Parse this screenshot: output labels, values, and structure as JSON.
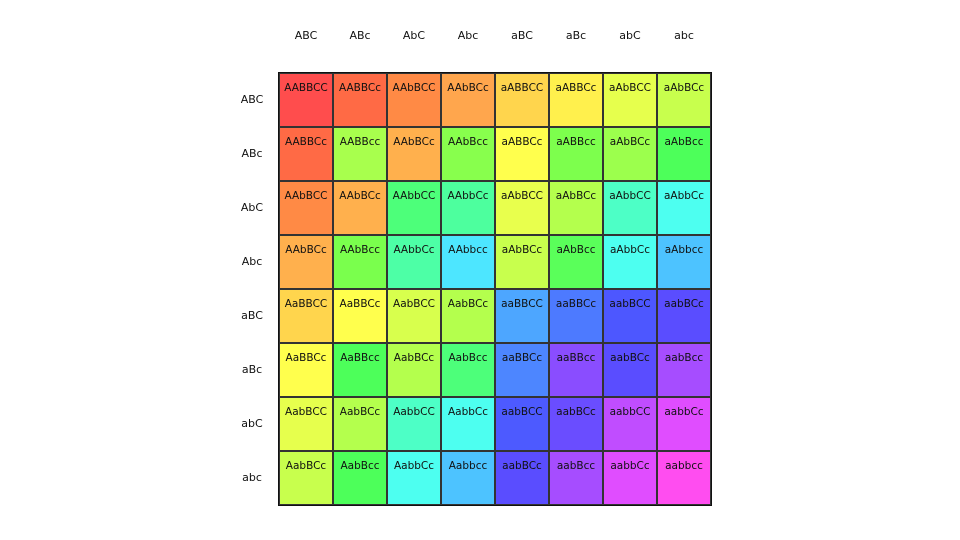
{
  "square": {
    "column_headers": [
      "ABC",
      "ABc",
      "AbC",
      "Abc",
      "aBC",
      "aBc",
      "abC",
      "abc"
    ],
    "row_headers": [
      "ABC",
      "ABc",
      "AbC",
      "Abc",
      "aBC",
      "aBc",
      "abC",
      "abc"
    ],
    "cells": [
      [
        "AABBCC",
        "AABBCc",
        "AAbBCC",
        "AAbBCc",
        "aABBCC",
        "aABBCc",
        "aAbBCC",
        "aAbBCc"
      ],
      [
        "AABBCc",
        "AABBcc",
        "AAbBCc",
        "AAbBcc",
        "aABBCc",
        "aABBcc",
        "aAbBCc",
        "aAbBcc"
      ],
      [
        "AAbBCC",
        "AAbBCc",
        "AAbbCC",
        "AAbbCc",
        "aAbBCC",
        "aAbBCc",
        "aAbbCC",
        "aAbbCc"
      ],
      [
        "AAbBCc",
        "AAbBcc",
        "AAbbCc",
        "AAbbcc",
        "aAbBCc",
        "aAbBcc",
        "aAbbCc",
        "aAbbcc"
      ],
      [
        "AaBBCC",
        "AaBBCc",
        "AabBCC",
        "AabBCc",
        "aaBBCC",
        "aaBBCc",
        "aabBCC",
        "aabBCc"
      ],
      [
        "AaBBCc",
        "AaBBcc",
        "AabBCc",
        "AabBcc",
        "aaBBCc",
        "aaBBcc",
        "aabBCc",
        "aabBcc"
      ],
      [
        "AabBCC",
        "AabBCc",
        "AabbCC",
        "AabbCc",
        "aabBCC",
        "aabBCc",
        "aabbCC",
        "aabbCc"
      ],
      [
        "AabBCc",
        "AabBcc",
        "AabbCc",
        "Aabbcc",
        "aabBCc",
        "aabBcc",
        "aabbCc",
        "aabbcc"
      ]
    ],
    "cell_colors": [
      [
        "#ff4d4d",
        "#ff6a45",
        "#ff8a45",
        "#ffa64d",
        "#ffd54d",
        "#fff04d",
        "#e6ff4d",
        "#c8ff4d"
      ],
      [
        "#ff6a45",
        "#a8ff4d",
        "#ffb04d",
        "#88ff4d",
        "#ffff4d",
        "#7dff4d",
        "#9cff4d",
        "#4dff5a"
      ],
      [
        "#ff8a45",
        "#ffb04d",
        "#4dff7a",
        "#4dff9e",
        "#e8ff4d",
        "#b4ff4d",
        "#4dffc6",
        "#4dfff0"
      ],
      [
        "#ffb04d",
        "#7aff4d",
        "#4dffa6",
        "#4de6ff",
        "#c8ff4d",
        "#5aff5a",
        "#4dfff0",
        "#4dc3ff"
      ],
      [
        "#ffd54d",
        "#ffff4d",
        "#d8ff4d",
        "#b4ff4d",
        "#4da6ff",
        "#4d7aff",
        "#4d57ff",
        "#5a4dff"
      ],
      [
        "#ffff4d",
        "#4dff5a",
        "#b4ff4d",
        "#4dff7a",
        "#4d86ff",
        "#8a4dff",
        "#5a4dff",
        "#a64dff"
      ],
      [
        "#e6ff4d",
        "#b4ff4d",
        "#4dffc6",
        "#4dfff0",
        "#4d5aff",
        "#6a4dff",
        "#c04dff",
        "#e04dff"
      ],
      [
        "#c8ff4d",
        "#4dff5a",
        "#4dfff0",
        "#4dc3ff",
        "#5a4dff",
        "#a64dff",
        "#e04dff",
        "#ff4df0"
      ]
    ]
  }
}
